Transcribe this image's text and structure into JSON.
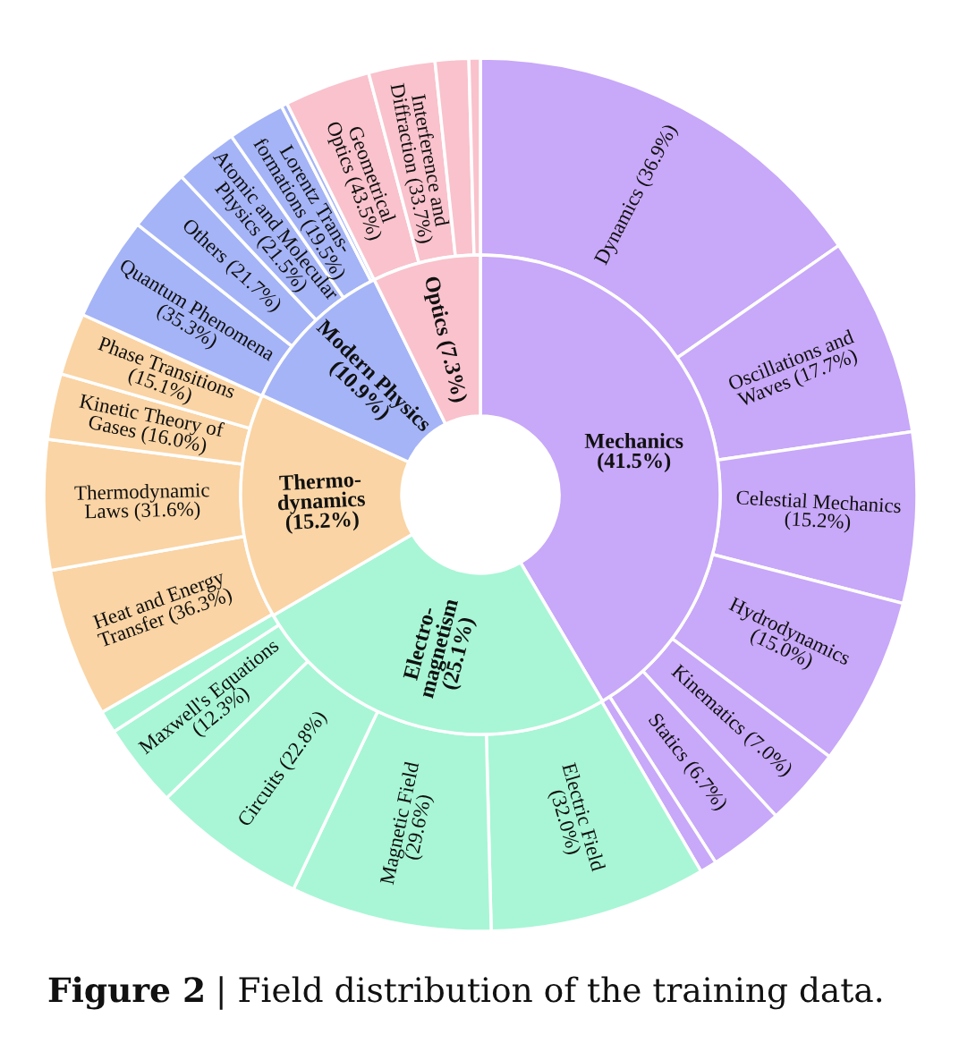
{
  "chart_data": {
    "type": "donut",
    "categories": [
      "Dynamics (36.9%)",
      "Oscillations and\nWaves (17.7%)",
      "Celestial Mechanics\n(15.2%)",
      "Hydrodynamics\n(15.0%)",
      "Kinematics (7.0%)",
      "Statics (6.7%)",
      null,
      "Electric Field\n(32.0%)",
      "Magnetic Field\n(29.6%)",
      "Circuits (22.8%)",
      "Maxwell's Equations\n(12.3%)",
      null,
      "Heat and Energy\nTransfer (36.3%)",
      "Thermodynamic\nLaws (31.6%)",
      "Kinetic Theory of\nGases (16.0%)",
      "Phase Transitions\n(15.1%)",
      "Quantum Phenomena\n(35.3%)",
      "Others (21.7%)",
      "Atomic and Molecular\nPhysics (21.5%)",
      "Lorentz Trans-\nformations (19.5%)",
      null,
      "Geometrical\nOptics (43.5%)",
      "Interference and\nDiffraction (33.7%)",
      null,
      null
    ],
    "colors": [
      "#c8a8f8",
      "#c8a8f8",
      "#c8a8f8",
      "#c8a8f8",
      "#c8a8f8",
      "#c8a8f8",
      "#c8a8f8",
      "#a8f6d6",
      "#a8f6d6",
      "#a8f6d6",
      "#a8f6d6",
      "#a8f6d6",
      "#fad4a4",
      "#fad4a4",
      "#fad4a4",
      "#fad4a4",
      "#a5b4f6",
      "#a5b4f6",
      "#a5b4f6",
      "#a5b4f6",
      "#a5b4f6",
      "#f9c2cc",
      "#f9c2cc",
      "#f9c2cc",
      "#f9c2cc"
    ],
    "series": [
      {
        "values": [
          15.31,
          7.35,
          6.31,
          6.23,
          2.91,
          2.78,
          0.62,
          8.03,
          7.43,
          5.72,
          3.09,
          0.83,
          5.52,
          4.8,
          2.43,
          2.3,
          3.85,
          2.37,
          2.34,
          2.13,
          0.22,
          3.18,
          2.46,
          1.24,
          0.42
        ]
      },
      {
        "values": [
          41.5,
          null,
          null,
          null,
          null,
          null,
          null,
          25.1,
          null,
          null,
          null,
          null,
          15.2,
          null,
          null,
          null,
          10.9,
          null,
          null,
          null,
          null,
          7.3,
          null,
          null,
          null
        ],
        "value_labels": [
          "Mechanics\n(41.5%)",
          null,
          null,
          null,
          null,
          null,
          null,
          "Electro-\nmagnetism\n(25.1%)",
          null,
          null,
          null,
          null,
          "Thermo-\ndynamics\n(15.2%)",
          null,
          null,
          null,
          "Modern Physics\n(10.9%)",
          null,
          null,
          null,
          null,
          "Optics (7.3%)",
          null,
          null,
          null
        ]
      }
    ],
    "annotations": [
      "Figure 2",
      "| Field distribution of the training data."
    ]
  }
}
